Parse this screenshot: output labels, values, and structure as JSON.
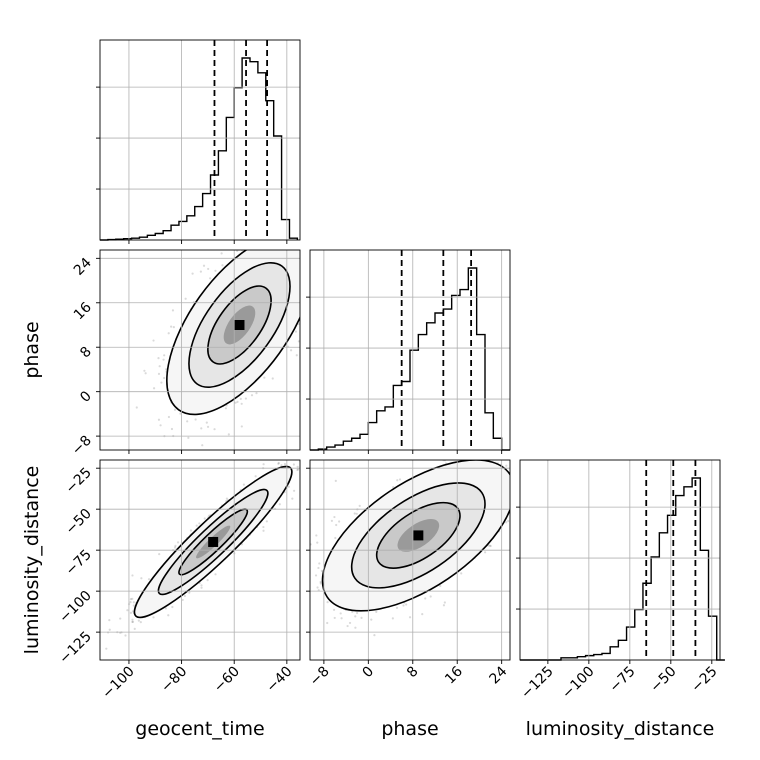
{
  "chart_data": {
    "type": "corner",
    "parameters": [
      "geocent_time",
      "phase",
      "luminosity_distance"
    ],
    "ranges": {
      "geocent_time": [
        -111,
        -35
      ],
      "phase": [
        -10.5,
        25.5
      ],
      "luminosity_distance": [
        -142,
        -20
      ]
    },
    "ticks": {
      "geocent_time": [
        {
          "v": -100,
          "label": "−100"
        },
        {
          "v": -80,
          "label": "−80"
        },
        {
          "v": -60,
          "label": "−60"
        },
        {
          "v": -40,
          "label": "−40"
        }
      ],
      "phase": [
        {
          "v": -8,
          "label": "−8"
        },
        {
          "v": 0,
          "label": "0"
        },
        {
          "v": 8,
          "label": "8"
        },
        {
          "v": 16,
          "label": "16"
        },
        {
          "v": 24,
          "label": "24"
        }
      ],
      "luminosity_distance": [
        {
          "v": -125,
          "label": "−125"
        },
        {
          "v": -100,
          "label": "−100"
        },
        {
          "v": -75,
          "label": "−75"
        },
        {
          "v": -50,
          "label": "−50"
        },
        {
          "v": -25,
          "label": "−25"
        }
      ]
    },
    "quantiles": {
      "geocent_time": [
        -67.5,
        -55.5,
        -47.5
      ],
      "phase": [
        6,
        13.5,
        18.5
      ],
      "luminosity_distance": [
        -65,
        -48.5,
        -35
      ]
    },
    "histograms": {
      "geocent_time": {
        "edges": [
          -111,
          -108,
          -105,
          -102,
          -99,
          -96,
          -93,
          -90,
          -87,
          -84,
          -81,
          -78,
          -75,
          -72,
          -69,
          -66,
          -63,
          -60,
          -57,
          -54,
          -51,
          -48,
          -45,
          -42,
          -39,
          -36
        ],
        "counts": [
          0.0,
          0.2,
          0.4,
          0.7,
          1.0,
          1.5,
          2.5,
          3.5,
          5,
          8,
          10,
          13,
          18,
          25,
          35,
          48,
          66,
          82,
          98,
          96,
          90,
          75,
          56,
          11,
          1
        ]
      },
      "phase": {
        "edges": [
          -10.5,
          -9,
          -7.5,
          -6,
          -4.5,
          -3,
          -1.5,
          0,
          1.5,
          3,
          4.5,
          6,
          7.5,
          9,
          10.5,
          12,
          13.5,
          15,
          16.5,
          18,
          19.5,
          21,
          22.5,
          24,
          25.5
        ],
        "counts": [
          0,
          0.5,
          1.5,
          2.5,
          4.5,
          6,
          8,
          14,
          20,
          22,
          33,
          35,
          51,
          59,
          65,
          70,
          72,
          79,
          82,
          93,
          59,
          19,
          6,
          0
        ]
      },
      "luminosity_distance": {
        "edges": [
          -142,
          -137,
          -132,
          -127,
          -122,
          -117,
          -112,
          -107,
          -102,
          -97,
          -92,
          -87,
          -82,
          -77,
          -72,
          -67,
          -62,
          -57,
          -52,
          -47,
          -42,
          -37,
          -32,
          -27,
          -22,
          -17
        ],
        "counts": [
          0,
          0,
          0,
          0,
          0,
          1,
          1,
          1.5,
          2,
          2.5,
          3,
          6,
          9,
          15,
          23,
          35,
          47,
          58,
          66,
          75,
          79,
          83,
          50,
          20,
          0
        ]
      }
    },
    "pairs": [
      {
        "x": "geocent_time",
        "y": "phase",
        "mean": [
          -58,
          12
        ],
        "sd": [
          12,
          7
        ],
        "rho": 0.62
      },
      {
        "x": "geocent_time",
        "y": "luminosity_distance",
        "mean": [
          -68,
          -70
        ],
        "sd": [
          13,
          20
        ],
        "rho": 0.93
      },
      {
        "x": "phase",
        "y": "luminosity_distance",
        "mean": [
          9,
          -66
        ],
        "sd": [
          7.5,
          20
        ],
        "rho": 0.6
      }
    ],
    "grid": true
  }
}
